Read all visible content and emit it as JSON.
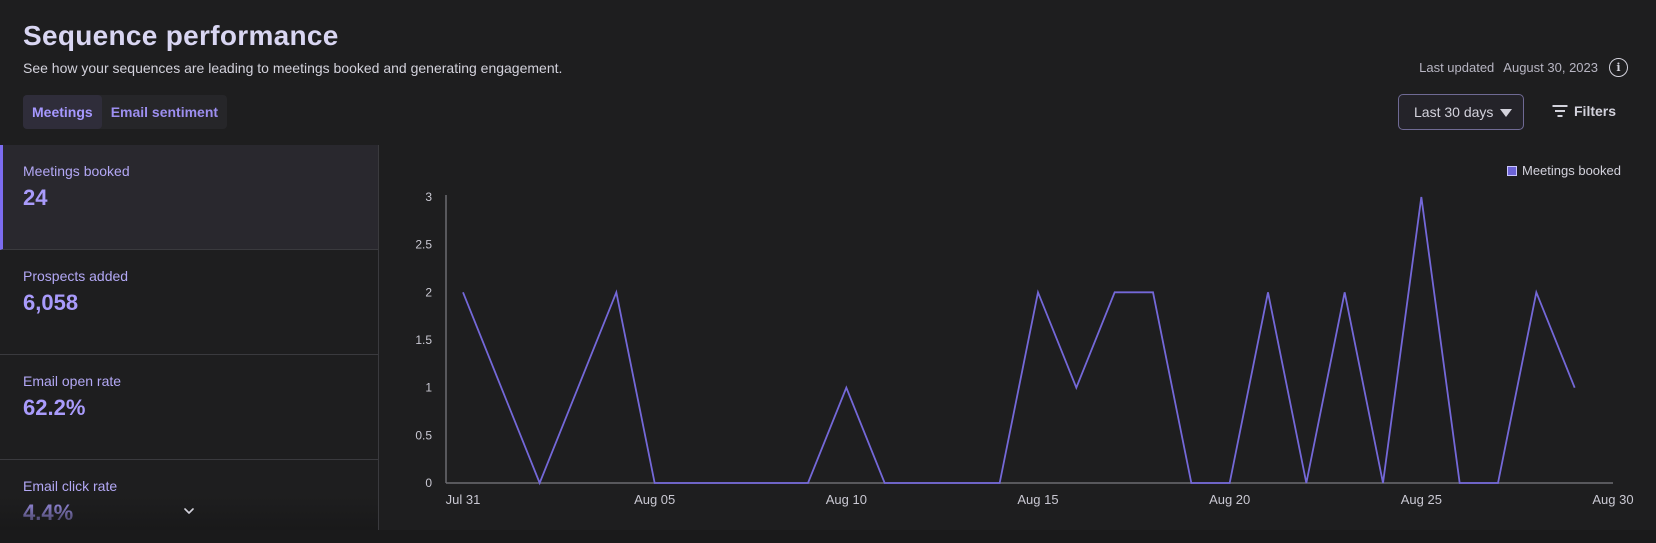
{
  "header": {
    "title": "Sequence performance",
    "subtitle": "See how your sequences are leading to meetings booked and generating engagement.",
    "last_updated_label": "Last updated",
    "last_updated_value": "August 30, 2023",
    "info_glyph": "i"
  },
  "tabs": [
    {
      "label": "Meetings",
      "active": true
    },
    {
      "label": "Email sentiment",
      "active": false
    }
  ],
  "controls": {
    "range_label": "Last 30 days",
    "filters_label": "Filters"
  },
  "metrics": [
    {
      "label": "Meetings booked",
      "value": "24",
      "active": true
    },
    {
      "label": "Prospects added",
      "value": "6,058",
      "active": false
    },
    {
      "label": "Email open rate",
      "value": "62.2%",
      "active": false
    },
    {
      "label": "Email click rate",
      "value": "4.4%",
      "active": false
    }
  ],
  "colors": {
    "accent": "#7c6cf0",
    "line": "#7468d8",
    "background": "#1e1e1f"
  },
  "icons": {
    "info": "info-icon",
    "caret": "caret-down-icon",
    "filters": "filter-icon",
    "expand": "chevron-down-icon"
  },
  "chart_data": {
    "type": "line",
    "title": "",
    "xlabel": "",
    "ylabel": "",
    "ylim": [
      0,
      3
    ],
    "yticks": [
      "0",
      "0.5",
      "1",
      "1.5",
      "2",
      "2.5",
      "3"
    ],
    "x_tick_labels": [
      "Jul 31",
      "Aug 05",
      "Aug 10",
      "Aug 15",
      "Aug 20",
      "Aug 25",
      "Aug 30"
    ],
    "legend_position": "top-right",
    "grid": false,
    "series": [
      {
        "name": "Meetings booked",
        "x": [
          "Jul 31",
          "Aug 01",
          "Aug 02",
          "Aug 03",
          "Aug 04",
          "Aug 05",
          "Aug 06",
          "Aug 07",
          "Aug 08",
          "Aug 09",
          "Aug 10",
          "Aug 11",
          "Aug 12",
          "Aug 13",
          "Aug 14",
          "Aug 15",
          "Aug 16",
          "Aug 17",
          "Aug 18",
          "Aug 19",
          "Aug 20",
          "Aug 21",
          "Aug 22",
          "Aug 23",
          "Aug 24",
          "Aug 25",
          "Aug 26",
          "Aug 27",
          "Aug 28",
          "Aug 29"
        ],
        "values": [
          2,
          1,
          0,
          1,
          2,
          0,
          0,
          0,
          0,
          0,
          1,
          0,
          0,
          0,
          0,
          2,
          1,
          2,
          2,
          0,
          0,
          2,
          0,
          2,
          0,
          3,
          0,
          0,
          2,
          1
        ]
      }
    ]
  }
}
